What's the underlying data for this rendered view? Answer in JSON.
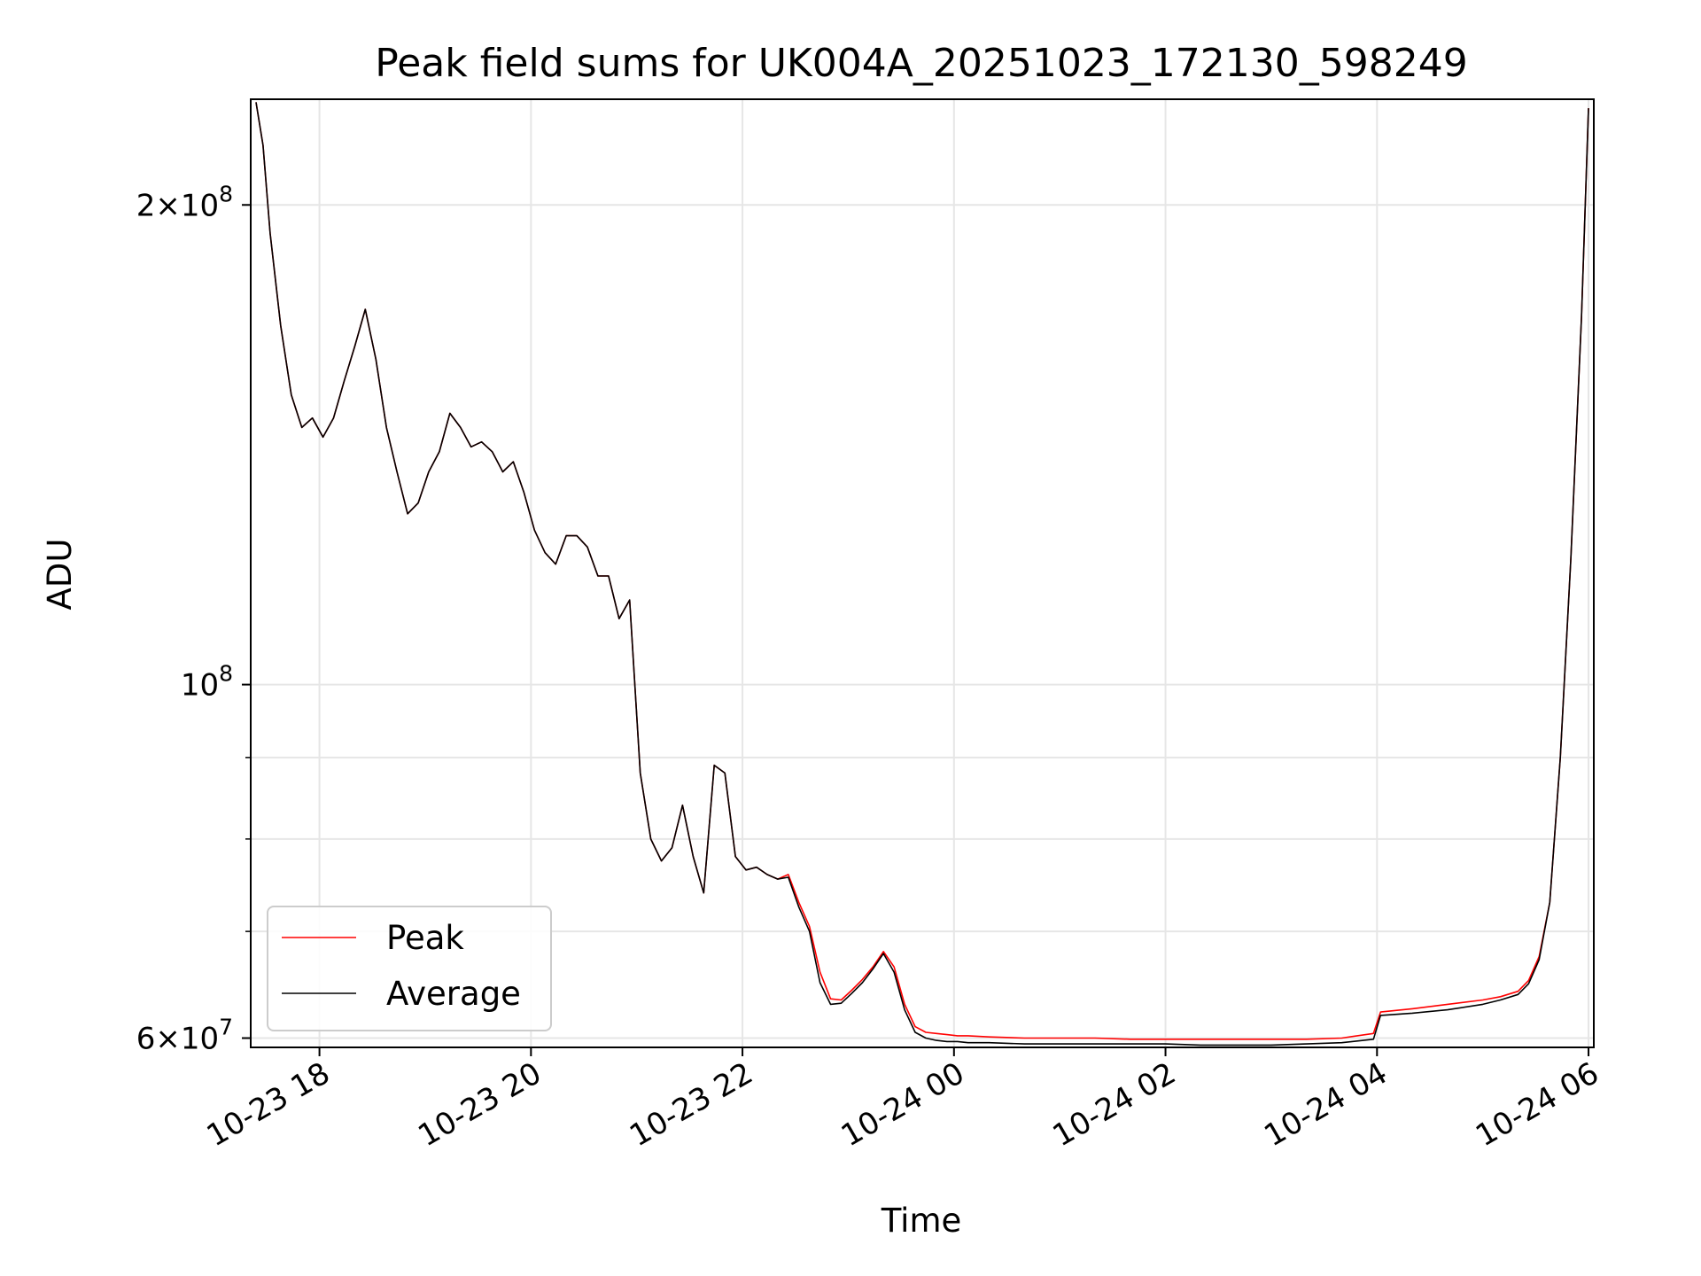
{
  "chart_data": {
    "type": "line",
    "title": "Peak field sums for UK004A_20251023_172130_598249",
    "xlabel": "Time",
    "ylabel": "ADU",
    "yscale": "log",
    "grid": true,
    "legend_position": "lower-left",
    "xlim": [
      "2025-10-23 17:21",
      "2025-10-24 06:03"
    ],
    "ylim": [
      59200000,
      233000000
    ],
    "x_ticks": [
      {
        "value": "2025-10-23 18:00",
        "label": "10-23 18"
      },
      {
        "value": "2025-10-23 20:00",
        "label": "10-23 20"
      },
      {
        "value": "2025-10-23 22:00",
        "label": "10-23 22"
      },
      {
        "value": "2025-10-24 00:00",
        "label": "10-24 00"
      },
      {
        "value": "2025-10-24 02:00",
        "label": "10-24 02"
      },
      {
        "value": "2025-10-24 04:00",
        "label": "10-24 04"
      },
      {
        "value": "2025-10-24 06:00",
        "label": "10-24 06"
      }
    ],
    "y_major_ticks": [
      {
        "value": 200000000,
        "mant": "2",
        "exp": "8"
      },
      {
        "value": 100000000,
        "mant": "",
        "exp": "8"
      },
      {
        "value": 60000000,
        "mant": "6",
        "exp": "7"
      }
    ],
    "y_minor_ticks": [
      70000000,
      80000000,
      90000000
    ],
    "series": [
      {
        "name": "Peak",
        "color": "#ff0000",
        "x": [
          "2025-10-23 17:24",
          "2025-10-23 17:28",
          "2025-10-23 17:32",
          "2025-10-23 17:38",
          "2025-10-23 17:44",
          "2025-10-23 17:50",
          "2025-10-23 17:56",
          "2025-10-23 18:02",
          "2025-10-23 18:08",
          "2025-10-23 18:14",
          "2025-10-23 18:20",
          "2025-10-23 18:26",
          "2025-10-23 18:32",
          "2025-10-23 18:38",
          "2025-10-23 18:44",
          "2025-10-23 18:50",
          "2025-10-23 18:56",
          "2025-10-23 19:02",
          "2025-10-23 19:08",
          "2025-10-23 19:14",
          "2025-10-23 19:20",
          "2025-10-23 19:26",
          "2025-10-23 19:32",
          "2025-10-23 19:38",
          "2025-10-23 19:44",
          "2025-10-23 19:50",
          "2025-10-23 19:56",
          "2025-10-23 20:02",
          "2025-10-23 20:08",
          "2025-10-23 20:14",
          "2025-10-23 20:20",
          "2025-10-23 20:26",
          "2025-10-23 20:32",
          "2025-10-23 20:38",
          "2025-10-23 20:44",
          "2025-10-23 20:50",
          "2025-10-23 20:56",
          "2025-10-23 21:02",
          "2025-10-23 21:08",
          "2025-10-23 21:14",
          "2025-10-23 21:20",
          "2025-10-23 21:26",
          "2025-10-23 21:32",
          "2025-10-23 21:38",
          "2025-10-23 21:44",
          "2025-10-23 21:50",
          "2025-10-23 21:56",
          "2025-10-23 22:02",
          "2025-10-23 22:08",
          "2025-10-23 22:14",
          "2025-10-23 22:20",
          "2025-10-23 22:26",
          "2025-10-23 22:32",
          "2025-10-23 22:38",
          "2025-10-23 22:44",
          "2025-10-23 22:50",
          "2025-10-23 22:56",
          "2025-10-23 23:02",
          "2025-10-23 23:08",
          "2025-10-23 23:14",
          "2025-10-23 23:20",
          "2025-10-23 23:26",
          "2025-10-23 23:32",
          "2025-10-23 23:38",
          "2025-10-23 23:44",
          "2025-10-23 23:50",
          "2025-10-23 23:56",
          "2025-10-24 00:02",
          "2025-10-24 00:08",
          "2025-10-24 00:20",
          "2025-10-24 00:40",
          "2025-10-24 01:00",
          "2025-10-24 01:20",
          "2025-10-24 01:40",
          "2025-10-24 02:00",
          "2025-10-24 02:20",
          "2025-10-24 02:40",
          "2025-10-24 03:00",
          "2025-10-24 03:20",
          "2025-10-24 03:40",
          "2025-10-24 03:58",
          "2025-10-24 04:02",
          "2025-10-24 04:20",
          "2025-10-24 04:40",
          "2025-10-24 05:00",
          "2025-10-24 05:10",
          "2025-10-24 05:20",
          "2025-10-24 05:26",
          "2025-10-24 05:32",
          "2025-10-24 05:38",
          "2025-10-24 05:44",
          "2025-10-24 05:50",
          "2025-10-24 05:56",
          "2025-10-24 06:00"
        ],
        "y": [
          232000000,
          218000000,
          192000000,
          168000000,
          152000000,
          145000000,
          147000000,
          143000000,
          147000000,
          155000000,
          163000000,
          172000000,
          160000000,
          145000000,
          136000000,
          128000000,
          130000000,
          136000000,
          140000000,
          148000000,
          145000000,
          141000000,
          142000000,
          140000000,
          136000000,
          138000000,
          132000000,
          125000000,
          121000000,
          119000000,
          124000000,
          124000000,
          122000000,
          117000000,
          117000000,
          110000000,
          113000000,
          88000000,
          80000000,
          77500000,
          79000000,
          84000000,
          78000000,
          74000000,
          89000000,
          88000000,
          78000000,
          76500000,
          76800000,
          76000000,
          75500000,
          76000000,
          73000000,
          70500000,
          66000000,
          63500000,
          63400000,
          64300000,
          65300000,
          66500000,
          68000000,
          66500000,
          63000000,
          61000000,
          60500000,
          60400000,
          60300000,
          60200000,
          60200000,
          60100000,
          60000000,
          60000000,
          60000000,
          59900000,
          59900000,
          59900000,
          59900000,
          59900000,
          59900000,
          60000000,
          60400000,
          62300000,
          62600000,
          63000000,
          63400000,
          63700000,
          64200000,
          65200000,
          67500000,
          73000000,
          90000000,
          120000000,
          170000000,
          230000000
        ]
      },
      {
        "name": "Average",
        "color": "#000000",
        "x": [
          "2025-10-23 17:24",
          "2025-10-23 17:28",
          "2025-10-23 17:32",
          "2025-10-23 17:38",
          "2025-10-23 17:44",
          "2025-10-23 17:50",
          "2025-10-23 17:56",
          "2025-10-23 18:02",
          "2025-10-23 18:08",
          "2025-10-23 18:14",
          "2025-10-23 18:20",
          "2025-10-23 18:26",
          "2025-10-23 18:32",
          "2025-10-23 18:38",
          "2025-10-23 18:44",
          "2025-10-23 18:50",
          "2025-10-23 18:56",
          "2025-10-23 19:02",
          "2025-10-23 19:08",
          "2025-10-23 19:14",
          "2025-10-23 19:20",
          "2025-10-23 19:26",
          "2025-10-23 19:32",
          "2025-10-23 19:38",
          "2025-10-23 19:44",
          "2025-10-23 19:50",
          "2025-10-23 19:56",
          "2025-10-23 20:02",
          "2025-10-23 20:08",
          "2025-10-23 20:14",
          "2025-10-23 20:20",
          "2025-10-23 20:26",
          "2025-10-23 20:32",
          "2025-10-23 20:38",
          "2025-10-23 20:44",
          "2025-10-23 20:50",
          "2025-10-23 20:56",
          "2025-10-23 21:02",
          "2025-10-23 21:08",
          "2025-10-23 21:14",
          "2025-10-23 21:20",
          "2025-10-23 21:26",
          "2025-10-23 21:32",
          "2025-10-23 21:38",
          "2025-10-23 21:44",
          "2025-10-23 21:50",
          "2025-10-23 21:56",
          "2025-10-23 22:02",
          "2025-10-23 22:08",
          "2025-10-23 22:14",
          "2025-10-23 22:20",
          "2025-10-23 22:26",
          "2025-10-23 22:32",
          "2025-10-23 22:38",
          "2025-10-23 22:44",
          "2025-10-23 22:50",
          "2025-10-23 22:56",
          "2025-10-23 23:02",
          "2025-10-23 23:08",
          "2025-10-23 23:14",
          "2025-10-23 23:20",
          "2025-10-23 23:26",
          "2025-10-23 23:32",
          "2025-10-23 23:38",
          "2025-10-23 23:44",
          "2025-10-23 23:50",
          "2025-10-23 23:56",
          "2025-10-24 00:02",
          "2025-10-24 00:08",
          "2025-10-24 00:20",
          "2025-10-24 00:40",
          "2025-10-24 01:00",
          "2025-10-24 01:20",
          "2025-10-24 01:40",
          "2025-10-24 02:00",
          "2025-10-24 02:20",
          "2025-10-24 02:40",
          "2025-10-24 03:00",
          "2025-10-24 03:20",
          "2025-10-24 03:40",
          "2025-10-24 03:58",
          "2025-10-24 04:02",
          "2025-10-24 04:20",
          "2025-10-24 04:40",
          "2025-10-24 05:00",
          "2025-10-24 05:10",
          "2025-10-24 05:20",
          "2025-10-24 05:26",
          "2025-10-24 05:32",
          "2025-10-24 05:38",
          "2025-10-24 05:44",
          "2025-10-24 05:50",
          "2025-10-24 05:56",
          "2025-10-24 06:00"
        ],
        "y": [
          232000000,
          218000000,
          192000000,
          168000000,
          152000000,
          145000000,
          147000000,
          143000000,
          147000000,
          155000000,
          163000000,
          172000000,
          160000000,
          145000000,
          136000000,
          128000000,
          130000000,
          136000000,
          140000000,
          148000000,
          145000000,
          141000000,
          142000000,
          140000000,
          136000000,
          138000000,
          132000000,
          125000000,
          121000000,
          119000000,
          124000000,
          124000000,
          122000000,
          117000000,
          117000000,
          110000000,
          113000000,
          88000000,
          80000000,
          77500000,
          79000000,
          84000000,
          78000000,
          74000000,
          89000000,
          88000000,
          78000000,
          76500000,
          76800000,
          76000000,
          75500000,
          75700000,
          72500000,
          70000000,
          65000000,
          63000000,
          63100000,
          64000000,
          65000000,
          66300000,
          67800000,
          66000000,
          62500000,
          60500000,
          60000000,
          59800000,
          59700000,
          59700000,
          59600000,
          59600000,
          59500000,
          59500000,
          59500000,
          59500000,
          59500000,
          59400000,
          59400000,
          59400000,
          59500000,
          59600000,
          59900000,
          62000000,
          62200000,
          62500000,
          63000000,
          63400000,
          63900000,
          64900000,
          67200000,
          73000000,
          90000000,
          120000000,
          170000000,
          230000000
        ]
      }
    ]
  }
}
